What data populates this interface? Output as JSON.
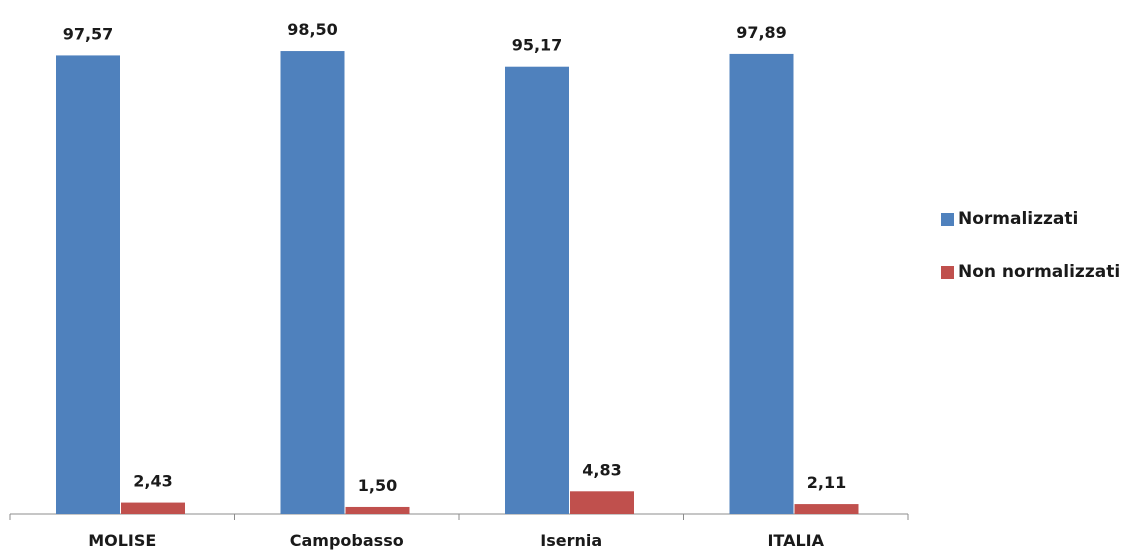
{
  "chart_data": {
    "type": "bar",
    "categories": [
      "MOLISE",
      "Campobasso",
      "Isernia",
      "ITALIA"
    ],
    "series": [
      {
        "name": "Normalizzati",
        "values": [
          97.57,
          98.5,
          95.17,
          97.89
        ],
        "labels": [
          "97,57",
          "98,50",
          "95,17",
          "97,89"
        ],
        "color": "#4f81bd"
      },
      {
        "name": "Non normalizzati",
        "values": [
          2.43,
          1.5,
          4.83,
          2.11
        ],
        "labels": [
          "2,43",
          "1,50",
          "4,83",
          "2,11"
        ],
        "color": "#c0504d"
      }
    ],
    "ylim": [
      0,
      100
    ],
    "grid": false,
    "legend_position": "right"
  }
}
